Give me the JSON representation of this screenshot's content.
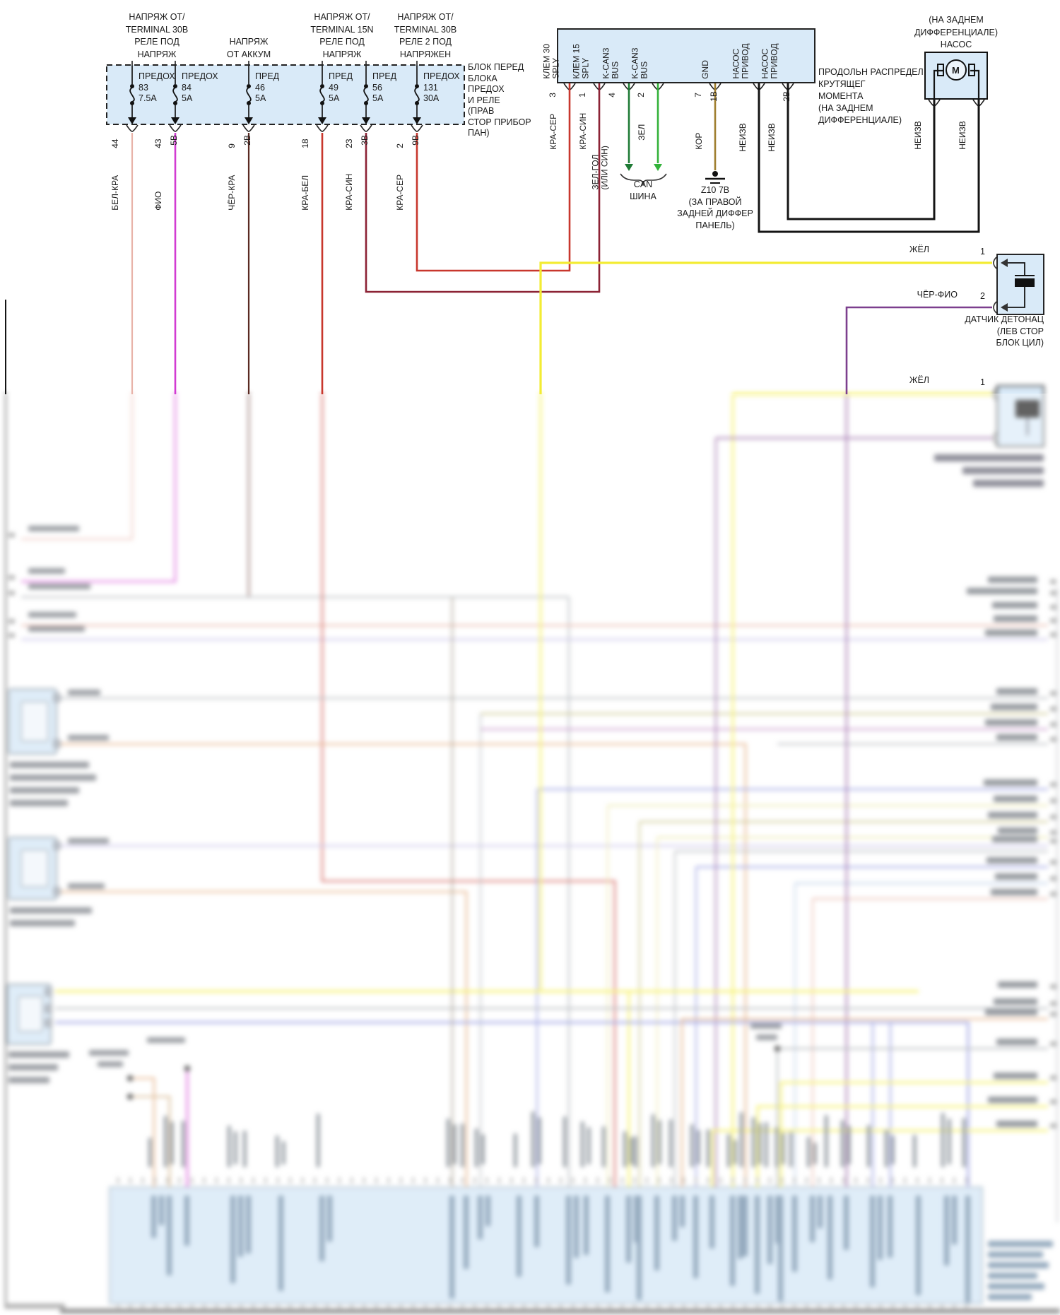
{
  "colors": {
    "box_fill": "#d9eaf8",
    "box_border": "#222222",
    "ecu_fill": "#cfe4f5",
    "bel_kra": "#e8b3a9",
    "fio": "#d23bd2",
    "cher_kra": "#5a2a22",
    "kra_bel": "#c8372d",
    "kra_sin": "#8c2335",
    "kra_ser": "#c8372d",
    "zel_gol": "#1e7a35",
    "zel": "#33b23a",
    "kor": "#a07f30",
    "neizv": "#141414",
    "zhel": "#f3ec33",
    "cher_fio": "#7c3f8e",
    "blur_gray": "#9aa0a6",
    "blur_blue": "#7b82d9",
    "blur_lavender": "#b8b0e2",
    "blur_orange": "#de9a62",
    "blur_olive": "#b3ac58",
    "blur_paleyellow": "#e6e193",
    "blur_salmon": "#e2a18f",
    "blur_ltblue": "#a8c0e0",
    "blur_magenta": "#d23bd2",
    "blur_magenta2": "#b06ab5",
    "blur_tan": "#c9a06a",
    "blur_brown": "#7a6a52",
    "smudge": "#6b7078",
    "smudge_blue": "#5f7f9d"
  },
  "fusebox": {
    "group_labels": [
      "НАПРЯЖ ОТ/\nTERMINAL 30В\nРЕЛЕ ПОД\nНАПРЯЖ",
      "НАПРЯЖ\nОТ АККУМ",
      "НАПРЯЖ ОТ/\nTERMINAL 15N\nРЕЛЕ ПОД\nНАПРЯЖ",
      "НАПРЯЖ ОТ/\nTERMINAL 30В\nРЕЛЕ 2 ПОД\nНАПРЯЖЕН"
    ],
    "fuses": [
      {
        "name": "ПРЕДОХ",
        "number": "83",
        "amps": "7.5А",
        "pin": "44",
        "sub": "",
        "wire": "БЕЛ-КРА"
      },
      {
        "name": "ПРЕДОХ",
        "number": "84",
        "amps": "5А",
        "pin": "43",
        "sub": "5В",
        "wire": "ФИО"
      },
      {
        "name": "ПРЕД",
        "number": "46",
        "amps": "5А",
        "pin": "9",
        "sub": "2В",
        "wire": "ЧЁР-КРА"
      },
      {
        "name": "ПРЕД",
        "number": "49",
        "amps": "5А",
        "pin": "18",
        "sub": "",
        "wire": "КРА-БЕЛ"
      },
      {
        "name": "ПРЕД",
        "number": "56",
        "amps": "5А",
        "pin": "23",
        "sub": "3В",
        "wire": "КРА-СИН"
      },
      {
        "name": "ПРЕДОХ",
        "number": "131",
        "amps": "30А",
        "pin": "2",
        "sub": "9В",
        "wire": "КРА-СЕР"
      }
    ],
    "note": "БЛОК ПЕРЕД\nБЛОКА\nПРЕДОХ\nИ РЕЛЕ\n(ПРАВ\nСТОР ПРИБОР\nПАН)"
  },
  "control_module": {
    "pins": [
      {
        "label": "КЛЕМ 30\nSPLY",
        "pin": "3",
        "wire": "КРА-СЕР",
        "sub": ""
      },
      {
        "label": "КЛЕМ 15\nSPLY",
        "pin": "1",
        "wire": "КРА-СИН",
        "sub": ""
      },
      {
        "label": "K-CAN3\nBUS",
        "pin": "4",
        "wire": "ЗЕЛ-ГОЛ\n(ИЛИ СИН)",
        "sub": ""
      },
      {
        "label": "K-CAN3\nBUS",
        "pin": "2",
        "wire": "ЗЕЛ",
        "sub": ""
      },
      {
        "label": "GND",
        "pin": "7",
        "wire": "КОР",
        "sub": "1В"
      },
      {
        "label": "НАСОС\nПРИВОД",
        "pin": "",
        "wire": "НЕИЗВ",
        "sub": ""
      },
      {
        "label": "НАСОС\nПРИВОД",
        "pin": "",
        "wire": "НЕИЗВ",
        "sub": "2В"
      }
    ]
  },
  "can_bus": {
    "label": "CAN\nШИНА"
  },
  "ground_z10": {
    "label": "Z10 7В\n(ЗА ПРАВОЙ\nЗАДНЕЙ ДИФФЕР\nПАНЕЛЬ)"
  },
  "pump": {
    "location": "(НА ЗАДНЕМ\nДИФФЕРЕНЦИАЛЕ)",
    "name": "НАСОС",
    "motor": "М",
    "side_label": "ПРОДОЛЬН РАСПРЕДЕЛ\nКРУТЯЩЕГ\nМОМЕНТА\n(НА ЗАДНЕМ\nДИФФЕРЕНЦИАЛЕ)",
    "wire_left": "НЕИЗВ",
    "wire_right": "НЕИЗВ"
  },
  "knock_sensor_1": {
    "wire_1": "ЖЁЛ",
    "pin_1": "1",
    "wire_2": "ЧЁР-ФИО",
    "pin_2": "2",
    "label": "ДАТЧИК ДЕТОНАЦ\n(ЛЕВ СТОР\nБЛОК ЦИЛ)"
  },
  "knock_sensor_2": {
    "wire_1": "ЖЁЛ",
    "pin_1": "1"
  }
}
